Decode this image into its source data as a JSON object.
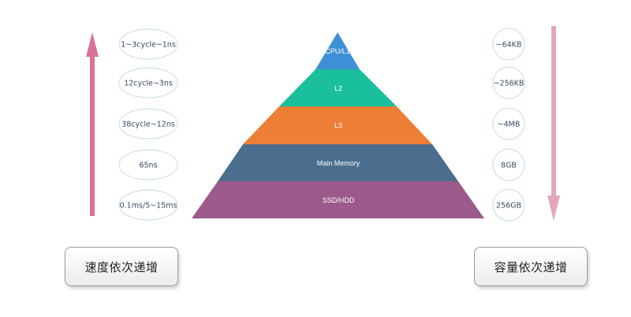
{
  "pyramid": {
    "tiers": [
      {
        "label": "CPU/L1",
        "color": "#3d8fd6"
      },
      {
        "label": "L2",
        "color": "#1abf9b"
      },
      {
        "label": "L3",
        "color": "#ec7e36"
      },
      {
        "label": "Main Memory",
        "color": "#4b6e8f"
      },
      {
        "label": "SSD/HDD",
        "color": "#9b5a8b"
      }
    ]
  },
  "latency": {
    "items": [
      "1~3cycle~1ns",
      "12cycle~3ns",
      "38cycle~12ns",
      "65ns",
      "0.1ms/5~15ms"
    ],
    "arrow_color": "#d9729b",
    "caption": "速度依次递增"
  },
  "capacity": {
    "items": [
      "~64KB",
      "~256KB",
      "~4MB",
      "8GB",
      "256GB"
    ],
    "arrow_color": "#e4a6bd",
    "caption": "容量依次递增"
  }
}
